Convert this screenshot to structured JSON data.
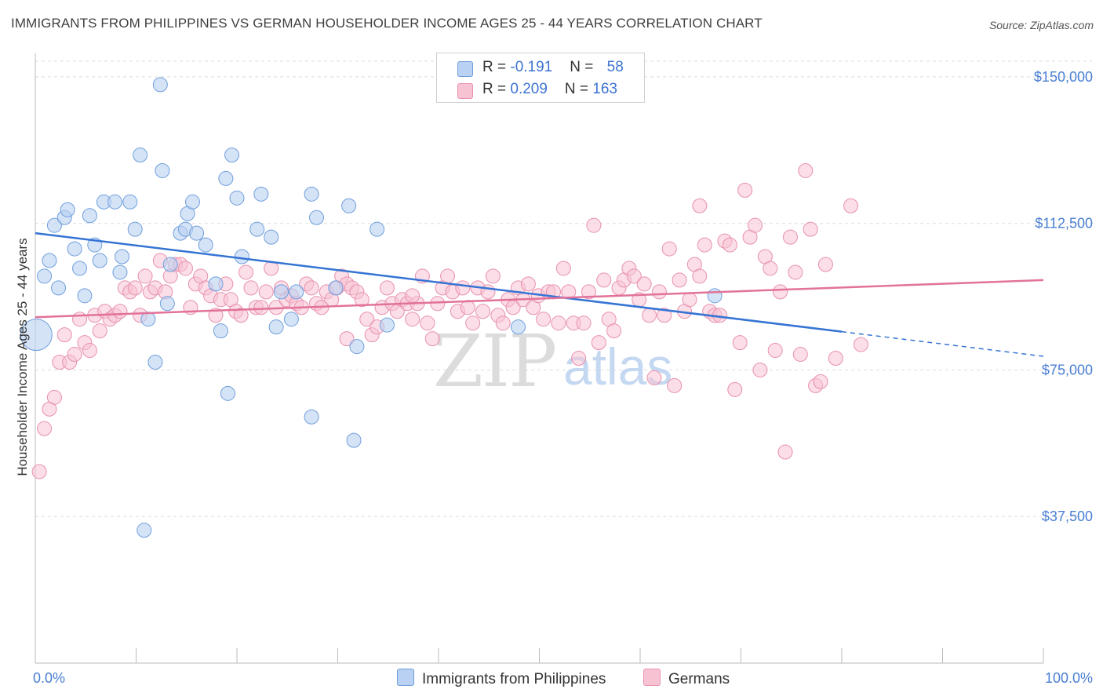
{
  "title": "IMMIGRANTS FROM PHILIPPINES VS GERMAN HOUSEHOLDER INCOME AGES 25 - 44 YEARS CORRELATION CHART",
  "source": "Source: ZipAtlas.com",
  "watermark": {
    "zip": "ZIP",
    "atlas": "atlas"
  },
  "legend": {
    "rows": [
      {
        "r_label": "R = ",
        "r_value": "-0.191",
        "n_label": "N = ",
        "n_value": "58"
      },
      {
        "r_label": "R = ",
        "r_value": "0.209",
        "n_label": "N = ",
        "n_value": "163"
      }
    ]
  },
  "colors": {
    "blue_fill": "#b9d1f2",
    "blue_stroke": "#6f9fdc",
    "blue_line": "#3574d4",
    "pink_fill": "#f7c3d3",
    "pink_stroke": "#e891ae",
    "pink_line": "#e2729a",
    "tick_text": "#4a7fd4",
    "grid": "#dddddd"
  },
  "chart_data": {
    "type": "scatter",
    "title": "IMMIGRANTS FROM PHILIPPINES VS GERMAN HOUSEHOLDER INCOME AGES 25 - 44 YEARS CORRELATION CHART",
    "xlabel": "",
    "ylabel": "Householder Income Ages 25 - 44 years",
    "x_tick_labels": [
      "0.0%",
      "100.0%"
    ],
    "y_tick_labels": [
      "$150,000",
      "$112,500",
      "$75,000",
      "$37,500"
    ],
    "y_ticks": [
      150000,
      112500,
      75000,
      37500
    ],
    "xlim": [
      0,
      100
    ],
    "ylim": [
      0,
      154000
    ],
    "grid": true,
    "legend_position": "top-center",
    "series": [
      {
        "name": "Immigrants from Philippines",
        "stats": {
          "R": -0.191,
          "N": 58
        },
        "trend": {
          "x0": 0,
          "y0": 110000,
          "x1": 80,
          "y1": 84800,
          "dash_to_x": 100,
          "dash_to_y": 78500
        },
        "points": [
          [
            0.1,
            84000
          ],
          [
            0.9,
            99000
          ],
          [
            1.4,
            103000
          ],
          [
            1.9,
            112000
          ],
          [
            2.3,
            96000
          ],
          [
            2.9,
            114000
          ],
          [
            3.2,
            116000
          ],
          [
            3.9,
            106000
          ],
          [
            4.4,
            101000
          ],
          [
            4.9,
            94000
          ],
          [
            5.4,
            114500
          ],
          [
            5.9,
            107000
          ],
          [
            6.4,
            103000
          ],
          [
            6.8,
            118000
          ],
          [
            7.9,
            118000
          ],
          [
            8.4,
            100000
          ],
          [
            8.6,
            104000
          ],
          [
            9.4,
            118000
          ],
          [
            9.9,
            111000
          ],
          [
            10.4,
            130000
          ],
          [
            11.2,
            88000
          ],
          [
            11.9,
            77000
          ],
          [
            12.4,
            148000
          ],
          [
            12.6,
            126000
          ],
          [
            13.1,
            92000
          ],
          [
            13.4,
            102000
          ],
          [
            14.4,
            110000
          ],
          [
            14.9,
            111000
          ],
          [
            15.1,
            115000
          ],
          [
            15.6,
            118000
          ],
          [
            16.0,
            110000
          ],
          [
            16.9,
            107000
          ],
          [
            17.9,
            97000
          ],
          [
            18.9,
            124000
          ],
          [
            18.4,
            85000
          ],
          [
            19.1,
            69000
          ],
          [
            19.5,
            130000
          ],
          [
            20.0,
            119000
          ],
          [
            20.5,
            104000
          ],
          [
            22.0,
            111000
          ],
          [
            22.4,
            120000
          ],
          [
            23.4,
            109000
          ],
          [
            23.9,
            86000
          ],
          [
            24.4,
            95000
          ],
          [
            25.4,
            88000
          ],
          [
            25.9,
            95000
          ],
          [
            27.4,
            63000
          ],
          [
            27.4,
            120000
          ],
          [
            27.9,
            114000
          ],
          [
            31.1,
            117000
          ],
          [
            31.6,
            57000
          ],
          [
            31.9,
            81000
          ],
          [
            33.9,
            111000
          ],
          [
            10.8,
            34000
          ],
          [
            34.9,
            86500
          ],
          [
            47.9,
            86000
          ],
          [
            29.8,
            96000
          ],
          [
            67.4,
            94000
          ]
        ]
      },
      {
        "name": "Germans",
        "stats": {
          "R": 0.209,
          "N": 163
        },
        "trend": {
          "x0": 0,
          "y0": 88500,
          "x1": 100,
          "y1": 98000
        },
        "points": [
          [
            0.4,
            49000
          ],
          [
            0.9,
            60000
          ],
          [
            1.4,
            65000
          ],
          [
            1.9,
            68000
          ],
          [
            2.4,
            77000
          ],
          [
            2.9,
            84000
          ],
          [
            3.4,
            77000
          ],
          [
            3.9,
            79000
          ],
          [
            4.4,
            88000
          ],
          [
            4.9,
            82000
          ],
          [
            5.4,
            80000
          ],
          [
            5.9,
            89000
          ],
          [
            6.4,
            85000
          ],
          [
            6.9,
            90000
          ],
          [
            7.4,
            88000
          ],
          [
            7.9,
            89000
          ],
          [
            8.4,
            90000
          ],
          [
            8.9,
            96000
          ],
          [
            9.4,
            95000
          ],
          [
            9.9,
            96000
          ],
          [
            10.4,
            89000
          ],
          [
            10.9,
            99000
          ],
          [
            11.4,
            95000
          ],
          [
            11.9,
            96000
          ],
          [
            12.4,
            103000
          ],
          [
            12.9,
            95000
          ],
          [
            13.4,
            99000
          ],
          [
            13.9,
            102000
          ],
          [
            14.4,
            102000
          ],
          [
            14.9,
            101000
          ],
          [
            15.4,
            91000
          ],
          [
            15.9,
            97000
          ],
          [
            16.4,
            99000
          ],
          [
            16.9,
            96000
          ],
          [
            17.4,
            94000
          ],
          [
            17.9,
            89000
          ],
          [
            18.4,
            93000
          ],
          [
            18.9,
            97000
          ],
          [
            19.4,
            93000
          ],
          [
            19.9,
            90000
          ],
          [
            20.4,
            89000
          ],
          [
            20.9,
            100000
          ],
          [
            21.4,
            96000
          ],
          [
            21.9,
            91000
          ],
          [
            22.4,
            91000
          ],
          [
            22.9,
            95000
          ],
          [
            23.4,
            101000
          ],
          [
            23.9,
            91000
          ],
          [
            24.4,
            96000
          ],
          [
            24.9,
            93000
          ],
          [
            25.4,
            94000
          ],
          [
            25.9,
            92000
          ],
          [
            26.4,
            91000
          ],
          [
            26.9,
            97000
          ],
          [
            27.4,
            96000
          ],
          [
            27.9,
            92000
          ],
          [
            28.4,
            91000
          ],
          [
            28.9,
            95000
          ],
          [
            29.4,
            93000
          ],
          [
            29.9,
            96000
          ],
          [
            30.4,
            99000
          ],
          [
            30.9,
            97000
          ],
          [
            31.4,
            96000
          ],
          [
            31.9,
            95000
          ],
          [
            32.4,
            93000
          ],
          [
            32.9,
            88000
          ],
          [
            33.4,
            84000
          ],
          [
            33.9,
            86000
          ],
          [
            34.4,
            91000
          ],
          [
            34.9,
            96000
          ],
          [
            35.4,
            92000
          ],
          [
            35.9,
            90000
          ],
          [
            36.4,
            93000
          ],
          [
            36.9,
            92000
          ],
          [
            37.4,
            88000
          ],
          [
            37.9,
            92000
          ],
          [
            38.4,
            99000
          ],
          [
            38.9,
            87000
          ],
          [
            39.4,
            83000
          ],
          [
            39.9,
            92000
          ],
          [
            40.4,
            96000
          ],
          [
            40.9,
            99000
          ],
          [
            41.4,
            95000
          ],
          [
            41.9,
            90000
          ],
          [
            42.4,
            96000
          ],
          [
            42.9,
            91000
          ],
          [
            43.4,
            87000
          ],
          [
            43.9,
            96000
          ],
          [
            44.4,
            90000
          ],
          [
            44.9,
            95000
          ],
          [
            45.4,
            99000
          ],
          [
            45.9,
            89000
          ],
          [
            46.4,
            87000
          ],
          [
            46.9,
            93000
          ],
          [
            47.4,
            91000
          ],
          [
            47.9,
            96000
          ],
          [
            48.4,
            93000
          ],
          [
            48.9,
            97000
          ],
          [
            49.4,
            91000
          ],
          [
            49.9,
            94000
          ],
          [
            50.4,
            88000
          ],
          [
            50.9,
            95000
          ],
          [
            51.4,
            95000
          ],
          [
            51.9,
            87000
          ],
          [
            52.4,
            101000
          ],
          [
            52.9,
            95000
          ],
          [
            53.4,
            87000
          ],
          [
            53.9,
            78000
          ],
          [
            54.4,
            87000
          ],
          [
            54.9,
            95000
          ],
          [
            55.4,
            112000
          ],
          [
            55.9,
            82000
          ],
          [
            56.4,
            98000
          ],
          [
            56.9,
            88000
          ],
          [
            57.4,
            85000
          ],
          [
            57.9,
            96000
          ],
          [
            58.4,
            98000
          ],
          [
            58.9,
            101000
          ],
          [
            59.4,
            99000
          ],
          [
            59.9,
            93000
          ],
          [
            60.4,
            97000
          ],
          [
            60.9,
            89000
          ],
          [
            61.4,
            73000
          ],
          [
            61.9,
            95000
          ],
          [
            62.4,
            89000
          ],
          [
            62.9,
            106000
          ],
          [
            63.4,
            71000
          ],
          [
            63.9,
            98000
          ],
          [
            64.4,
            90000
          ],
          [
            64.9,
            93000
          ],
          [
            65.4,
            102000
          ],
          [
            65.9,
            117000
          ],
          [
            66.4,
            107000
          ],
          [
            66.9,
            90000
          ],
          [
            67.4,
            89000
          ],
          [
            67.9,
            89000
          ],
          [
            68.4,
            108000
          ],
          [
            68.9,
            107000
          ],
          [
            69.4,
            70000
          ],
          [
            69.9,
            82000
          ],
          [
            70.4,
            121000
          ],
          [
            70.9,
            109000
          ],
          [
            71.4,
            112000
          ],
          [
            71.9,
            75000
          ],
          [
            72.4,
            104000
          ],
          [
            72.9,
            101000
          ],
          [
            73.4,
            80000
          ],
          [
            73.9,
            95000
          ],
          [
            74.4,
            54000
          ],
          [
            74.9,
            109000
          ],
          [
            75.4,
            100000
          ],
          [
            75.9,
            79000
          ],
          [
            76.4,
            126000
          ],
          [
            76.9,
            111000
          ],
          [
            77.4,
            71000
          ],
          [
            77.9,
            72000
          ],
          [
            78.4,
            102000
          ],
          [
            79.4,
            78000
          ],
          [
            80.9,
            117000
          ],
          [
            81.9,
            81500
          ],
          [
            65.9,
            99000
          ],
          [
            30.9,
            83000
          ],
          [
            37.4,
            94000
          ]
        ]
      }
    ]
  }
}
